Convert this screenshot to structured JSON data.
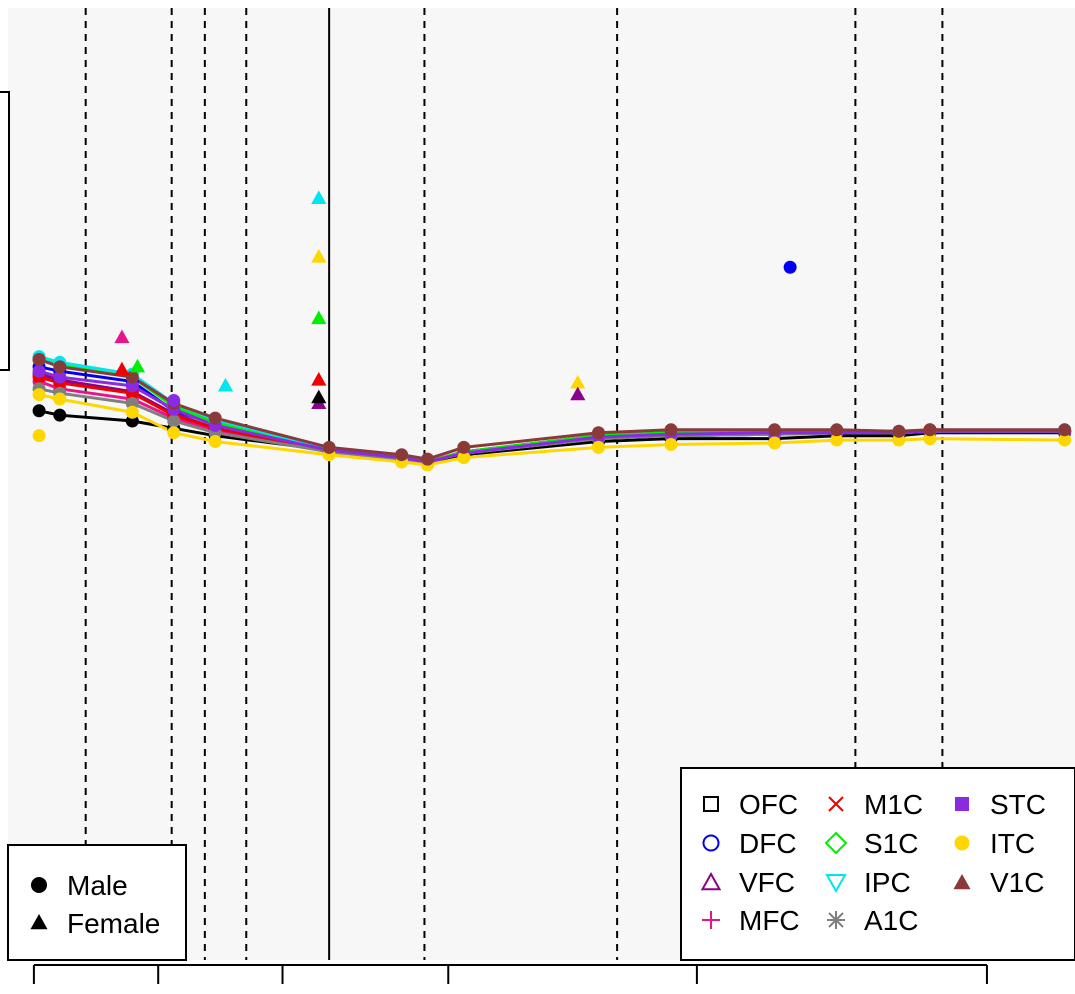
{
  "chart_data": {
    "type": "line",
    "title": "",
    "xlabel": "",
    "ylabel": "",
    "xlim": [
      0,
      103
    ],
    "ylim": [
      -10,
      55
    ],
    "grid": false,
    "background": "#f7f7f7",
    "x_ticks": [
      2.5,
      14.5,
      26.5,
      42.5,
      66.5,
      94.5
    ],
    "reference_lines": {
      "solid": [
        31
      ],
      "dashed": [
        7.5,
        15.8,
        19,
        23,
        40.2,
        58.8,
        81.8,
        90.2
      ]
    },
    "legend_regions": {
      "position": "bottom-right",
      "entries": [
        {
          "label": "OFC",
          "color": "#000000",
          "symbol": "open-square"
        },
        {
          "label": "DFC",
          "color": "#0000ee",
          "symbol": "open-circle"
        },
        {
          "label": "VFC",
          "color": "#8b008b",
          "symbol": "open-triangle-up"
        },
        {
          "label": "MFC",
          "color": "#e8158a",
          "symbol": "plus"
        },
        {
          "label": "M1C",
          "color": "#ee0000",
          "symbol": "cross"
        },
        {
          "label": "S1C",
          "color": "#00ee00",
          "symbol": "open-diamond"
        },
        {
          "label": "IPC",
          "color": "#00e5ee",
          "symbol": "open-triangle-down"
        },
        {
          "label": "A1C",
          "color": "#7f7f7f",
          "symbol": "asterisk"
        },
        {
          "label": "STC",
          "color": "#8a2be2",
          "symbol": "filled-square"
        },
        {
          "label": "ITC",
          "color": "#ffd700",
          "symbol": "filled-circle"
        },
        {
          "label": "V1C",
          "color": "#8b3a3a",
          "symbol": "filled-triangle-up"
        }
      ]
    },
    "legend_sex": {
      "position": "bottom-left",
      "entries": [
        {
          "label": "Male",
          "symbol": "filled-circle"
        },
        {
          "label": "Female",
          "symbol": "filled-triangle-up"
        }
      ]
    },
    "series": [
      {
        "name": "OFC",
        "color": "#000000",
        "x": [
          3,
          5,
          12,
          16,
          20,
          31,
          38,
          40.5,
          44,
          57,
          64,
          74,
          80,
          86,
          89,
          102
        ],
        "y": [
          27.5,
          27.2,
          26.8,
          26.3,
          25.8,
          24.8,
          24.3,
          24.0,
          24.5,
          25.4,
          25.6,
          25.6,
          25.8,
          25.8,
          26.0,
          26.0
        ]
      },
      {
        "name": "DFC",
        "color": "#0000ee",
        "x": [
          3,
          5,
          12,
          16,
          20,
          31,
          38,
          40.5,
          44,
          57,
          64,
          74,
          80,
          86,
          89,
          102
        ],
        "y": [
          30.5,
          30.2,
          29.5,
          27.5,
          26.6,
          24.8,
          24.3,
          24.0,
          24.6,
          25.6,
          25.8,
          25.9,
          26.0,
          26.0,
          26.1,
          26.1
        ]
      },
      {
        "name": "VFC",
        "color": "#8b008b",
        "x": [
          3,
          5,
          12,
          16,
          20,
          31,
          38,
          40.5,
          44,
          57,
          64,
          74,
          80,
          86,
          89,
          102
        ],
        "y": [
          30.0,
          29.6,
          28.8,
          27.3,
          26.3,
          24.8,
          24.3,
          24.0,
          24.7,
          25.8,
          26.0,
          26.0,
          26.0,
          26.0,
          26.1,
          26.1
        ]
      },
      {
        "name": "MFC",
        "color": "#e8158a",
        "x": [
          3,
          5,
          12,
          16,
          20,
          31,
          38,
          40.5,
          44,
          57,
          64,
          74,
          80,
          86,
          89,
          102
        ],
        "y": [
          29.5,
          29.0,
          28.3,
          27.0,
          26.1,
          24.7,
          24.2,
          24.0,
          24.6,
          25.6,
          25.8,
          25.9,
          26.0,
          26.0,
          26.1,
          26.1
        ]
      },
      {
        "name": "M1C",
        "color": "#ee0000",
        "x": [
          3,
          5,
          12,
          16,
          20,
          31,
          38,
          40.5,
          44,
          57,
          64,
          74,
          80,
          86,
          89,
          102
        ],
        "y": [
          29.8,
          29.4,
          28.7,
          27.2,
          26.3,
          24.8,
          24.3,
          24.0,
          24.7,
          25.7,
          25.9,
          26.0,
          26.0,
          26.0,
          26.2,
          26.1
        ]
      },
      {
        "name": "S1C",
        "color": "#00ee00",
        "x": [
          3,
          5,
          12,
          16,
          20,
          31,
          38,
          40.5,
          44,
          57,
          64,
          74,
          80,
          86,
          89,
          102
        ],
        "y": [
          31.0,
          30.6,
          29.8,
          27.8,
          26.7,
          24.9,
          24.3,
          24.0,
          24.7,
          25.8,
          26.0,
          26.0,
          26.0,
          26.0,
          26.1,
          26.1
        ]
      },
      {
        "name": "IPC",
        "color": "#00e5ee",
        "x": [
          3,
          5,
          12,
          16,
          20,
          31,
          38,
          40.5,
          44,
          57,
          64,
          74,
          80,
          86,
          89,
          102
        ],
        "y": [
          31.2,
          30.8,
          30.0,
          28.0,
          26.9,
          24.9,
          24.4,
          24.0,
          24.6,
          25.6,
          25.8,
          25.9,
          26.0,
          26.0,
          26.1,
          26.2
        ]
      },
      {
        "name": "A1C",
        "color": "#7f7f7f",
        "x": [
          3,
          5,
          12,
          16,
          20,
          31,
          38,
          40.5,
          44,
          57,
          64,
          74,
          80,
          86,
          89,
          102
        ],
        "y": [
          29.0,
          28.7,
          28.0,
          26.8,
          26.0,
          24.7,
          24.2,
          24.0,
          24.6,
          25.6,
          25.8,
          25.9,
          26.0,
          26.0,
          26.1,
          26.1
        ]
      },
      {
        "name": "STC",
        "color": "#8a2be2",
        "x": [
          3,
          5,
          12,
          16,
          20,
          31,
          38,
          40.5,
          44,
          57,
          64,
          74,
          80,
          86,
          89,
          102
        ],
        "y": [
          30.2,
          29.8,
          29.2,
          27.6,
          26.5,
          24.8,
          24.3,
          24.0,
          24.6,
          25.7,
          25.9,
          26.0,
          26.0,
          26.0,
          26.1,
          26.1
        ]
      },
      {
        "name": "ITC",
        "color": "#ffd700",
        "x": [
          3,
          5,
          12,
          16,
          20,
          31,
          38,
          40.5,
          44,
          57,
          64,
          74,
          80,
          86,
          89,
          102
        ],
        "y": [
          28.6,
          28.3,
          27.4,
          26.0,
          25.4,
          24.5,
          24.0,
          23.8,
          24.3,
          25.0,
          25.2,
          25.3,
          25.5,
          25.5,
          25.6,
          25.5
        ]
      },
      {
        "name": "V1C",
        "color": "#8b3a3a",
        "x": [
          3,
          5,
          12,
          16,
          20,
          31,
          38,
          40.5,
          44,
          57,
          64,
          74,
          80,
          86,
          89,
          102
        ],
        "y": [
          31.0,
          30.5,
          29.8,
          28.0,
          27.0,
          25.0,
          24.5,
          24.2,
          25.0,
          26.0,
          26.2,
          26.2,
          26.2,
          26.1,
          26.2,
          26.2
        ]
      }
    ],
    "points": [
      {
        "region": "IPC",
        "sex": "Female",
        "x": 30,
        "y": 42.0
      },
      {
        "region": "ITC",
        "sex": "Female",
        "x": 30,
        "y": 38.0
      },
      {
        "region": "S1C",
        "sex": "Female",
        "x": 30,
        "y": 33.8
      },
      {
        "region": "M1C",
        "sex": "Female",
        "x": 30,
        "y": 29.6
      },
      {
        "region": "VFC",
        "sex": "Female",
        "x": 30,
        "y": 28.0
      },
      {
        "region": "OFC",
        "sex": "Female",
        "x": 30,
        "y": 28.4
      },
      {
        "region": "DFC",
        "sex": "Male",
        "x": 75.5,
        "y": 37.3
      },
      {
        "region": "MFC",
        "sex": "Female",
        "x": 11,
        "y": 32.5
      },
      {
        "region": "M1C",
        "sex": "Female",
        "x": 11,
        "y": 30.3
      },
      {
        "region": "S1C",
        "sex": "Female",
        "x": 12.5,
        "y": 30.5
      },
      {
        "region": "ITC",
        "sex": "Female",
        "x": 55,
        "y": 29.4
      },
      {
        "region": "VFC",
        "sex": "Female",
        "x": 55,
        "y": 28.6
      },
      {
        "region": "IPC",
        "sex": "Female",
        "x": 21,
        "y": 29.2
      },
      {
        "region": "V1C",
        "sex": "Male",
        "x": 3,
        "y": 31.0
      },
      {
        "region": "ITC",
        "sex": "Male",
        "x": 3,
        "y": 25.8
      },
      {
        "region": "STC",
        "sex": "Male",
        "x": 16,
        "y": 28.2
      }
    ]
  }
}
